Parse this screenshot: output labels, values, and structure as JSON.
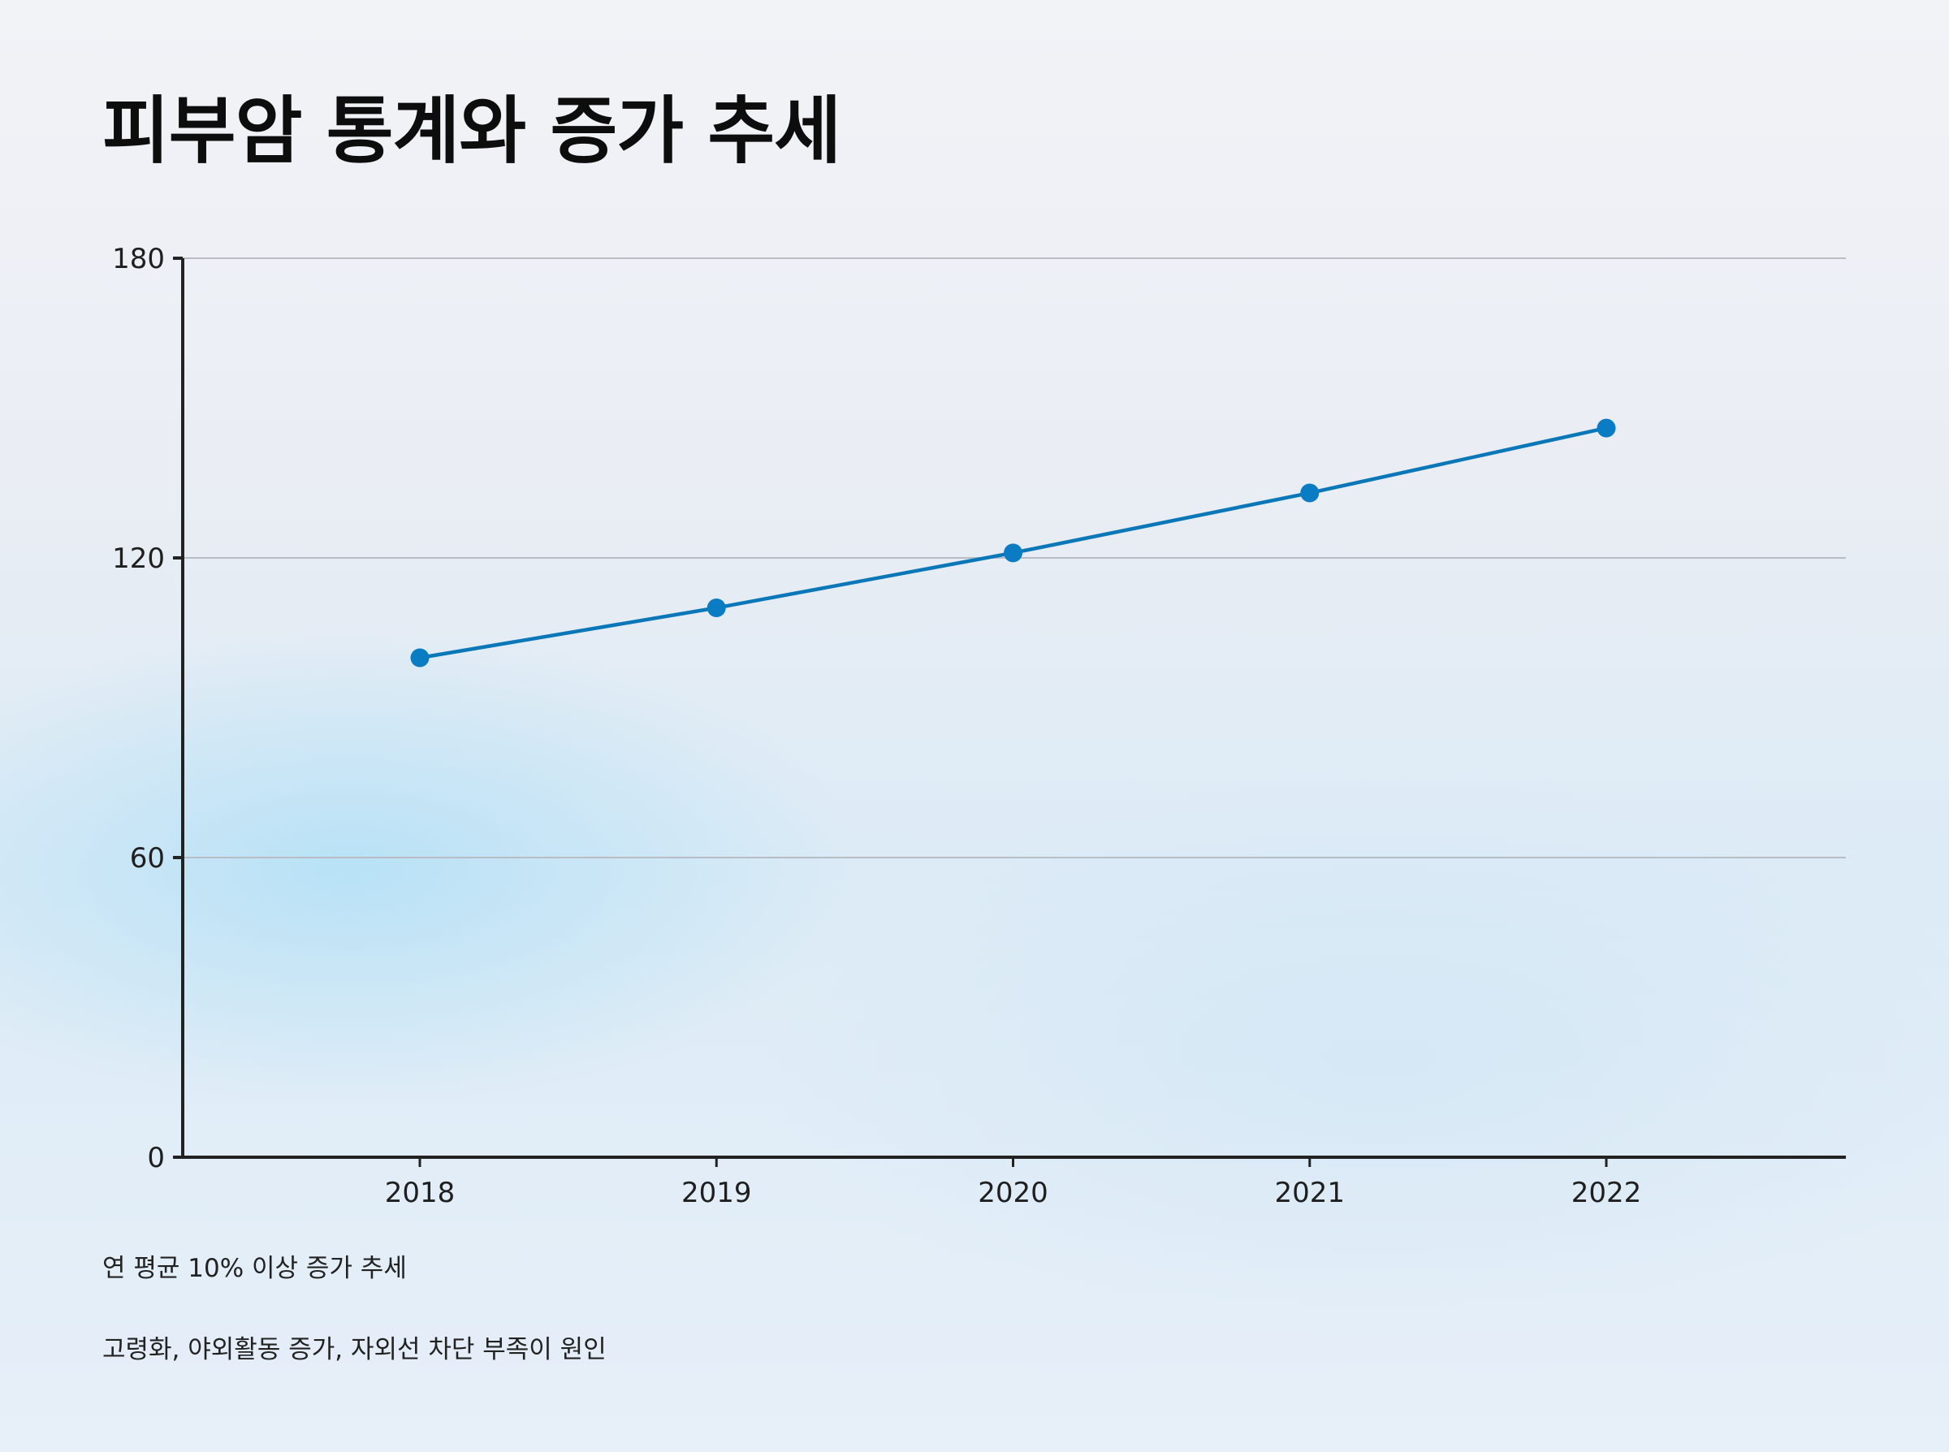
{
  "title": "피부암 통계와 증가 추세",
  "chart_data": {
    "type": "line",
    "title": "",
    "xlabel": "",
    "ylabel": "",
    "categories": [
      "2018",
      "2019",
      "2020",
      "2021",
      "2022"
    ],
    "series": [
      {
        "name": "",
        "values": [
          100,
          110,
          121,
          133,
          146
        ]
      }
    ],
    "ylim": [
      0,
      180
    ],
    "yticks": [
      0,
      60,
      120,
      180
    ],
    "grid": true,
    "legend": "none",
    "line_color": "#0a77b8",
    "marker_color": "#0a7cc4"
  },
  "notes": [
    "연 평균 10% 이상 증가 추세",
    "고령화, 야외활동 증가, 자외선 차단 부족이 원인"
  ]
}
